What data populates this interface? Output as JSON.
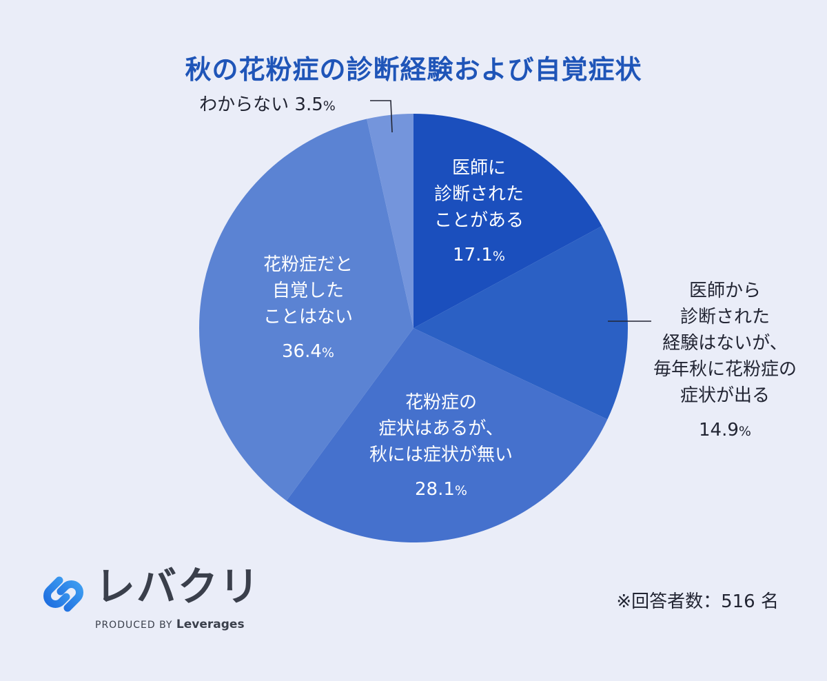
{
  "chart_data": {
    "type": "pie",
    "title": "秋の花粉症の診断経験および自覚症状",
    "slices": [
      {
        "label_lines": [
          "医師に",
          "診断された",
          "ことがある"
        ],
        "value": 17.1,
        "color": "#1b4fbd"
      },
      {
        "label_lines": [
          "医師から",
          "診断された",
          "経験はないが、",
          "毎年秋に花粉症の",
          "症状が出る"
        ],
        "value": 14.9,
        "color": "#2b60c4"
      },
      {
        "label_lines": [
          "花粉症の",
          "症状はあるが、",
          "秋には症状が無い"
        ],
        "value": 28.1,
        "color": "#4571cd"
      },
      {
        "label_lines": [
          "花粉症だと",
          "自覚した",
          "ことはない"
        ],
        "value": 36.4,
        "color": "#5b83d3"
      },
      {
        "label_lines": [
          "わからない"
        ],
        "value": 3.5,
        "color": "#7495dc"
      }
    ],
    "unit": "%"
  },
  "brand": {
    "name": "レバクリ",
    "produced_by": "PRODUCED BY",
    "company": "Leverages"
  },
  "footnote": "※回答者数：516 名"
}
